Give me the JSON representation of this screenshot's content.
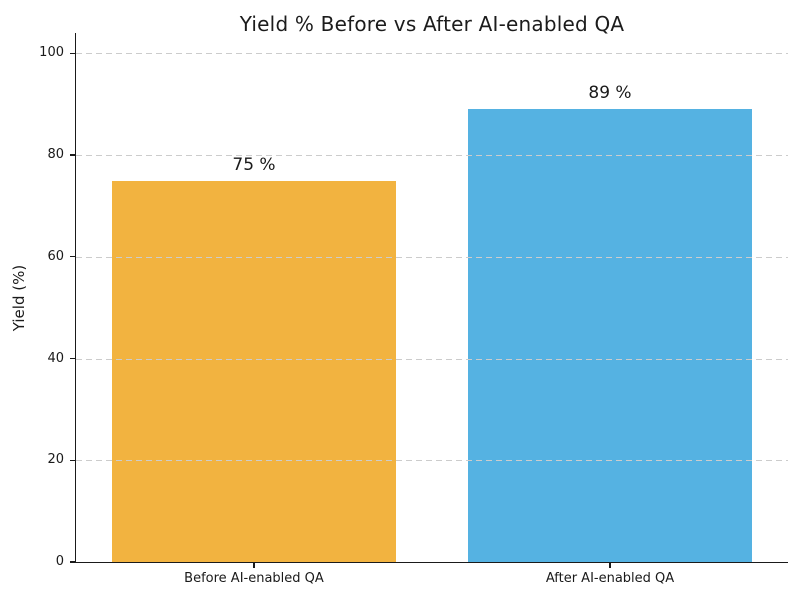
{
  "chart_data": {
    "type": "bar",
    "title": "Yield % Before vs After AI-enabled QA",
    "categories": [
      "Before AI-enabled QA",
      "After AI-enabled QA"
    ],
    "values": [
      75,
      89
    ],
    "bar_labels": [
      "75 %",
      "89 %"
    ],
    "bar_colors": [
      "#f2b340",
      "#55b2e2"
    ],
    "xlabel": "",
    "ylabel": "Yield (%)",
    "ylim": [
      0,
      104
    ],
    "yticks": [
      0,
      20,
      40,
      60,
      80,
      100
    ],
    "ytick_labels": [
      "0",
      "20",
      "40",
      "60",
      "80",
      "100"
    ],
    "grid": {
      "axis": "y",
      "style": "dashed",
      "color": "#cccccc",
      "on": true
    },
    "legend": "none",
    "colors": {
      "axis": "#1a1a1a",
      "text": "#1a1a1a",
      "background": "#ffffff"
    }
  }
}
